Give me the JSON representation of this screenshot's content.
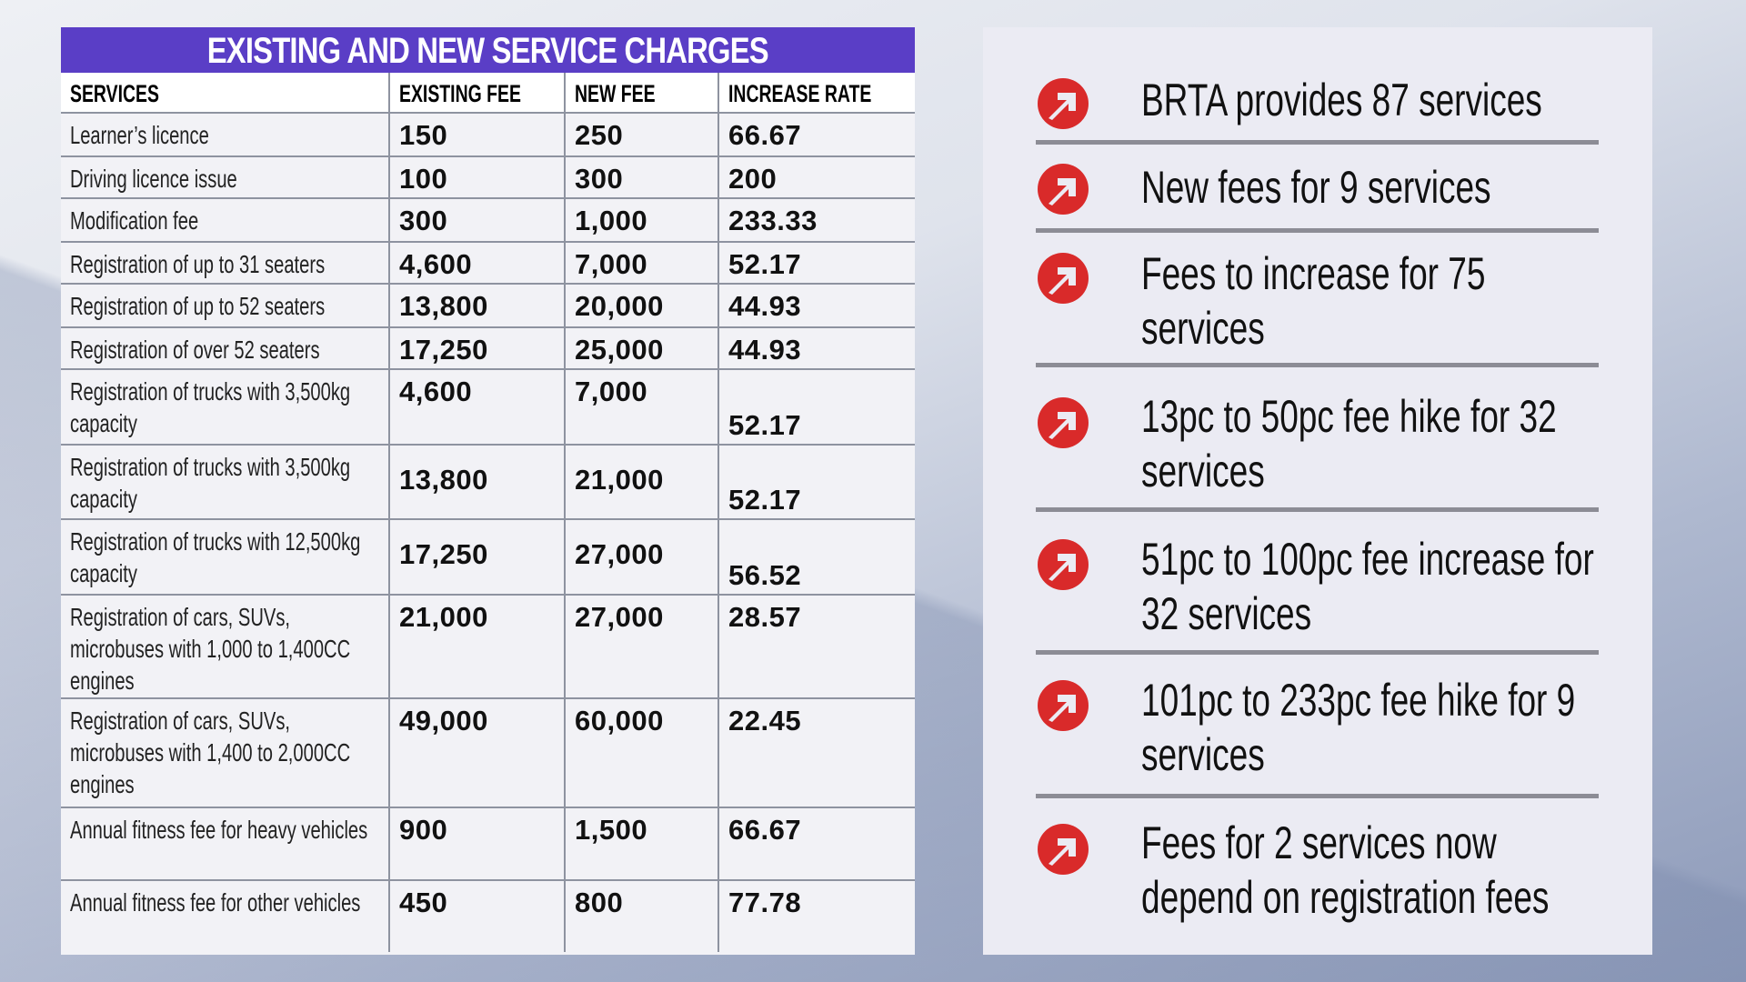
{
  "table": {
    "title": "EXISTING AND NEW SERVICE CHARGES",
    "headers": [
      "SERVICES",
      "EXISTING FEE",
      "NEW FEE",
      "INCREASE RATE"
    ],
    "rows": [
      {
        "service": "Learner’s licence",
        "existing": "150",
        "new": "250",
        "rate": "66.67"
      },
      {
        "service": "Driving licence issue",
        "existing": "100",
        "new": "300",
        "rate": "200"
      },
      {
        "service": "Modification fee",
        "existing": "300",
        "new": "1,000",
        "rate": "233.33"
      },
      {
        "service": "Registration of up to 31 seaters",
        "existing": "4,600",
        "new": "7,000",
        "rate": "52.17"
      },
      {
        "service": "Registration of up to 52 seaters",
        "existing": "13,800",
        "new": "20,000",
        "rate": "44.93"
      },
      {
        "service": "Registration of over 52 seaters",
        "existing": "17,250",
        "new": "25,000",
        "rate": "44.93"
      },
      {
        "service": "Registration of trucks with 3,500kg capacity",
        "existing": "4,600",
        "new": "7,000",
        "rate": "52.17"
      },
      {
        "service": "Registration of trucks with 3,500kg capacity",
        "existing": "13,800",
        "new": "21,000",
        "rate": "52.17"
      },
      {
        "service": "Registration of trucks with 12,500kg capacity",
        "existing": "17,250",
        "new": "27,000",
        "rate": "56.52"
      },
      {
        "service": "Registration of cars, SUVs, microbuses with 1,000 to 1,400CC engines",
        "existing": "21,000",
        "new": "27,000",
        "rate": "28.57"
      },
      {
        "service": "Registration of cars, SUVs, microbuses with 1,400 to 2,000CC engines",
        "existing": "49,000",
        "new": "60,000",
        "rate": "22.45"
      },
      {
        "service": "Annual fitness fee for heavy vehicles",
        "existing": "900",
        "new": "1,500",
        "rate": "66.67"
      },
      {
        "service": "Annual fitness fee for other vehicles",
        "existing": "450",
        "new": "800",
        "rate": "77.78"
      }
    ]
  },
  "highlights": [
    "BRTA provides 87 services",
    "New fees for 9 services",
    "Fees to increase for 75 services",
    "13pc to 50pc fee hike for 32 services",
    "51pc to 100pc fee increase for 32 services",
    "101pc to 233pc fee hike for 9 services",
    "Fees for 2 services now depend on registration fees"
  ],
  "colors": {
    "title_bar": "#5a3ec6",
    "icon": "#d92a2a"
  }
}
